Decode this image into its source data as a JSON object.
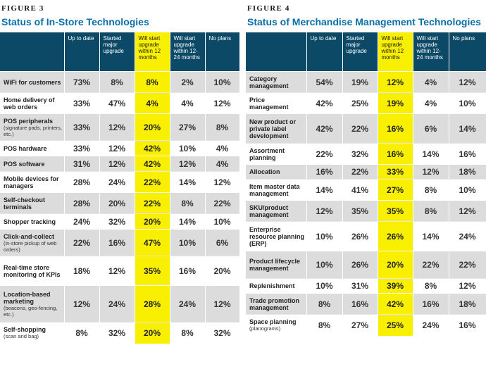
{
  "figure3": {
    "label": "FIGURE 3",
    "title": "Status of In-Store Technologies",
    "columns": [
      "Up to date",
      "Started major upgrade",
      "Will start upgrade within 12 months",
      "Will start upgrade within 12-24 months",
      "No plans"
    ],
    "rows": [
      {
        "label": "WiFi for customers",
        "sub": "",
        "values": [
          "73%",
          "8%",
          "8%",
          "2%",
          "10%"
        ]
      },
      {
        "label": "Home delivery of web orders",
        "sub": "",
        "values": [
          "33%",
          "47%",
          "4%",
          "4%",
          "12%"
        ]
      },
      {
        "label": "POS peripherals",
        "sub": "(signature pads, printers, etc.)",
        "values": [
          "33%",
          "12%",
          "20%",
          "27%",
          "8%"
        ]
      },
      {
        "label": "POS hardware",
        "sub": "",
        "values": [
          "33%",
          "12%",
          "42%",
          "10%",
          "4%"
        ]
      },
      {
        "label": "POS software",
        "sub": "",
        "values": [
          "31%",
          "12%",
          "42%",
          "12%",
          "4%"
        ]
      },
      {
        "label": "Mobile devices for managers",
        "sub": "",
        "values": [
          "28%",
          "24%",
          "22%",
          "14%",
          "12%"
        ]
      },
      {
        "label": "Self-checkout terminals",
        "sub": "",
        "values": [
          "28%",
          "20%",
          "22%",
          "8%",
          "22%"
        ]
      },
      {
        "label": "Shopper tracking",
        "sub": "",
        "values": [
          "24%",
          "32%",
          "20%",
          "14%",
          "10%"
        ]
      },
      {
        "label": "Click-and-collect",
        "sub": "(in-store pickup of web orders)",
        "values": [
          "22%",
          "16%",
          "47%",
          "10%",
          "6%"
        ]
      },
      {
        "label": "Real-time store monitoring of KPIs",
        "sub": "",
        "values": [
          "18%",
          "12%",
          "35%",
          "16%",
          "20%"
        ]
      },
      {
        "label": "Location-based marketing",
        "sub": "(beacons, geo-fencing, etc.)",
        "values": [
          "12%",
          "24%",
          "28%",
          "24%",
          "12%"
        ]
      },
      {
        "label": "Self-shopping",
        "sub": "(scan and bag)",
        "values": [
          "8%",
          "32%",
          "20%",
          "8%",
          "32%"
        ]
      }
    ]
  },
  "figure4": {
    "label": "FIGURE 4",
    "title": "Status of Merchandise Management Technologies",
    "columns": [
      "Up to date",
      "Started major upgrade",
      "Will start upgrade within 12 months",
      "Will start upgrade within 12-24 months",
      "No plans"
    ],
    "rows": [
      {
        "label": "Category management",
        "sub": "",
        "values": [
          "54%",
          "19%",
          "12%",
          "4%",
          "12%"
        ]
      },
      {
        "label": "Price management",
        "sub": "",
        "values": [
          "42%",
          "25%",
          "19%",
          "4%",
          "10%"
        ]
      },
      {
        "label": "New product or private label development",
        "sub": "",
        "values": [
          "42%",
          "22%",
          "16%",
          "6%",
          "14%"
        ]
      },
      {
        "label": "Assortment planning",
        "sub": "",
        "values": [
          "22%",
          "32%",
          "16%",
          "14%",
          "16%"
        ]
      },
      {
        "label": "Allocation",
        "sub": "",
        "values": [
          "16%",
          "22%",
          "33%",
          "12%",
          "18%"
        ]
      },
      {
        "label": "Item master data management",
        "sub": "",
        "values": [
          "14%",
          "41%",
          "27%",
          "8%",
          "10%"
        ]
      },
      {
        "label": "SKU/product management",
        "sub": "",
        "values": [
          "12%",
          "35%",
          "35%",
          "8%",
          "12%"
        ]
      },
      {
        "label": "Enterprise resource planning (ERP)",
        "sub": "",
        "values": [
          "10%",
          "26%",
          "26%",
          "14%",
          "24%"
        ]
      },
      {
        "label": "Product lifecycle management",
        "sub": "",
        "values": [
          "10%",
          "26%",
          "20%",
          "22%",
          "22%"
        ]
      },
      {
        "label": "Replenishment",
        "sub": "",
        "values": [
          "10%",
          "31%",
          "39%",
          "8%",
          "12%"
        ]
      },
      {
        "label": "Trade promotion management",
        "sub": "",
        "values": [
          "8%",
          "16%",
          "42%",
          "16%",
          "18%"
        ]
      },
      {
        "label": "Space planning",
        "sub": "(planograms)",
        "values": [
          "8%",
          "27%",
          "25%",
          "24%",
          "16%"
        ]
      }
    ]
  },
  "colors": {
    "header_bg": "#0c4966",
    "highlight": "#f8f000",
    "title_blue": "#0a6fa8",
    "row_gray": "#dcdcdc"
  }
}
